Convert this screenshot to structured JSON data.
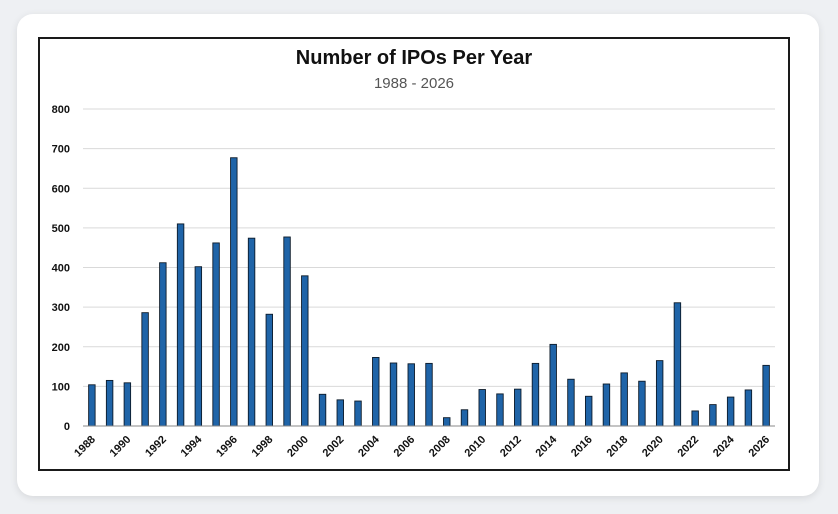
{
  "chart_data": {
    "type": "bar",
    "title": "Number of IPOs Per Year",
    "subtitle": "1988 - 2026",
    "xlabel": "",
    "ylabel": "",
    "ylim": [
      0,
      800
    ],
    "yticks": [
      0,
      100,
      200,
      300,
      400,
      500,
      600,
      700,
      800
    ],
    "grid": true,
    "legend": "none",
    "bar_color": "#1f64a8",
    "categories": [
      "1988",
      "1989",
      "1990",
      "1991",
      "1992",
      "1993",
      "1994",
      "1995",
      "1996",
      "1997",
      "1998",
      "1999",
      "2000",
      "2001",
      "2002",
      "2003",
      "2004",
      "2005",
      "2006",
      "2007",
      "2008",
      "2009",
      "2010",
      "2011",
      "2012",
      "2013",
      "2014",
      "2015",
      "2016",
      "2017",
      "2018",
      "2019",
      "2020",
      "2021",
      "2022",
      "2023",
      "2024",
      "2025",
      "2026"
    ],
    "xtick_labels": [
      "1988",
      "1990",
      "1992",
      "1994",
      "1996",
      "1998",
      "2000",
      "2002",
      "2004",
      "2006",
      "2008",
      "2010",
      "2012",
      "2014",
      "2016",
      "2018",
      "2020",
      "2022",
      "2024",
      "2026"
    ],
    "values": [
      104,
      115,
      109,
      286,
      412,
      510,
      402,
      462,
      677,
      474,
      282,
      477,
      379,
      80,
      66,
      63,
      173,
      159,
      157,
      158,
      21,
      41,
      92,
      81,
      93,
      158,
      206,
      118,
      75,
      106,
      134,
      113,
      165,
      311,
      38,
      54,
      73,
      91,
      153
    ]
  }
}
